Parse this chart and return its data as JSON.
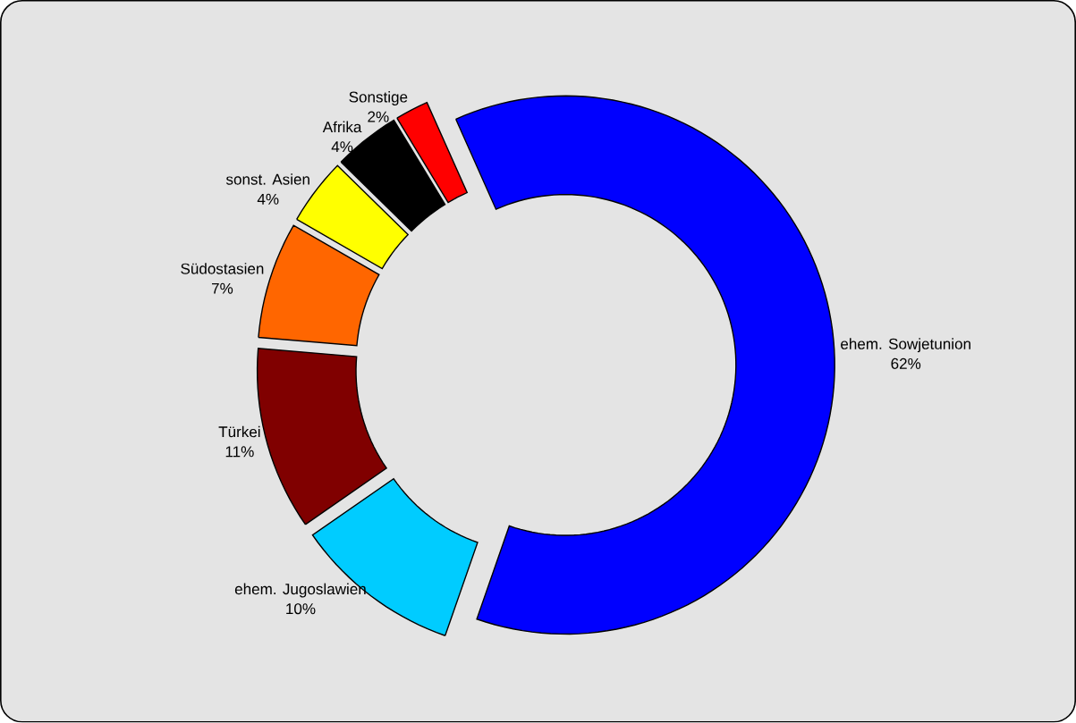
{
  "chart_data": {
    "type": "donut",
    "categories": [
      "ehem. Sowjetunion",
      "ehem. Jugoslawien",
      "Türkei",
      "Südostasien",
      "sonst. Asien",
      "Afrika",
      "Sonstige"
    ],
    "values": [
      62,
      10,
      11,
      7,
      4,
      4,
      2
    ],
    "colors": [
      "#0000ff",
      "#00ccff",
      "#800000",
      "#ff6600",
      "#ffff00",
      "#000000",
      "#ff0000"
    ],
    "value_labels": [
      "62%",
      "10%",
      "11%",
      "7%",
      "4%",
      "4%",
      "2%"
    ]
  }
}
